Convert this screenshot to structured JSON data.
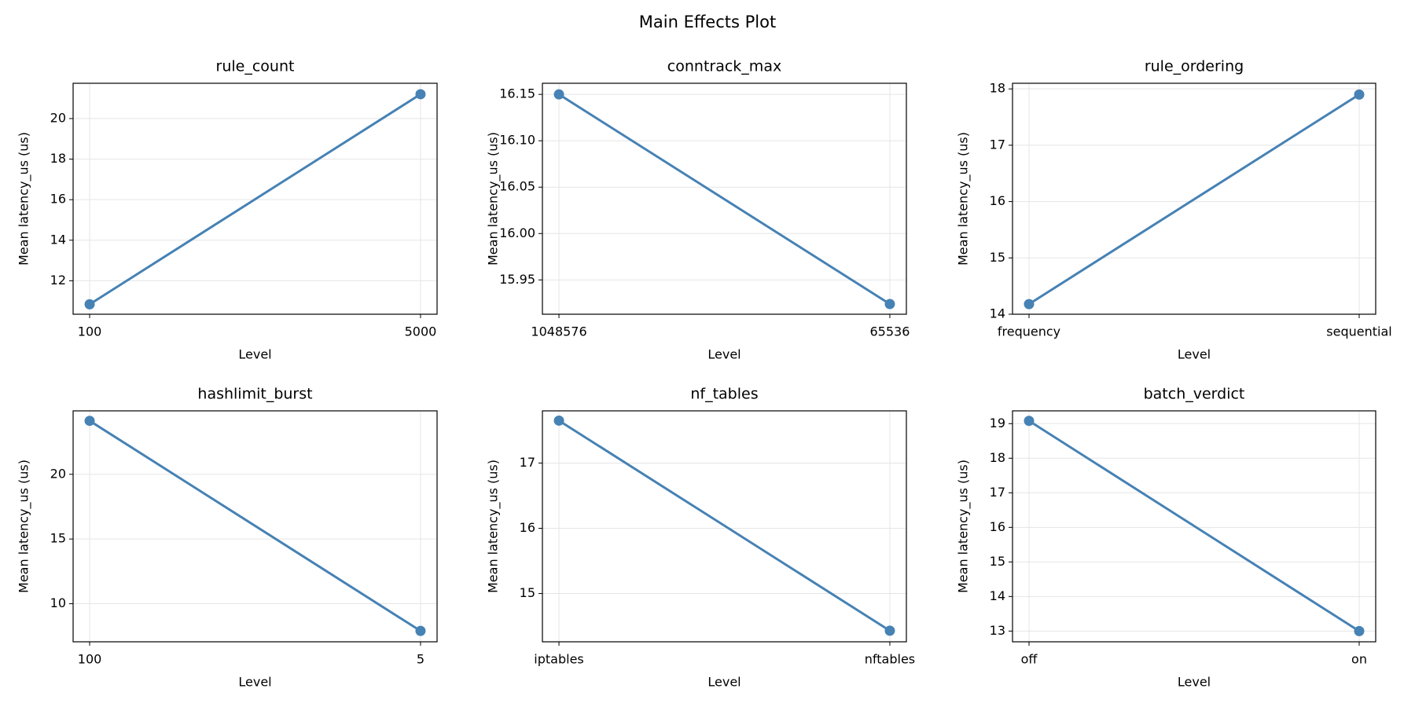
{
  "title": "Main Effects Plot",
  "chart_data": [
    {
      "type": "line",
      "title": "rule_count",
      "xlabel": "Level",
      "ylabel": "Mean latency_us (us)",
      "categories": [
        "100",
        "5000"
      ],
      "values": [
        10.84,
        21.2
      ],
      "color": "#4682b4",
      "ylim": [
        10.35,
        21.74
      ],
      "yticks": [
        12,
        14,
        16,
        18,
        20
      ],
      "grid": true
    },
    {
      "type": "line",
      "title": "conntrack_max",
      "xlabel": "Level",
      "ylabel": "Mean latency_us (us)",
      "categories": [
        "1048576",
        "65536"
      ],
      "values": [
        16.15,
        15.924
      ],
      "color": "#4682b4",
      "ylim": [
        15.913,
        16.162
      ],
      "yticks": [
        15.95,
        {
          "value": 16.0,
          "label": "16.00"
        },
        16.05,
        {
          "value": 16.1,
          "label": "16.10"
        },
        16.15
      ],
      "grid": true
    },
    {
      "type": "line",
      "title": "rule_ordering",
      "xlabel": "Level",
      "ylabel": "Mean latency_us (us)",
      "categories": [
        "frequency",
        "sequential"
      ],
      "values": [
        14.18,
        17.9
      ],
      "color": "#4682b4",
      "ylim": [
        14.0,
        18.1
      ],
      "yticks": [
        14,
        15,
        16,
        17,
        18
      ],
      "grid": true
    },
    {
      "type": "line",
      "title": "hashlimit_burst",
      "xlabel": "Level",
      "ylabel": "Mean latency_us (us)",
      "categories": [
        "100",
        "5"
      ],
      "values": [
        24.13,
        7.9
      ],
      "color": "#4682b4",
      "ylim": [
        7.06,
        24.9
      ],
      "yticks": [
        10,
        15,
        20
      ],
      "grid": true
    },
    {
      "type": "line",
      "title": "nf_tables",
      "xlabel": "Level",
      "ylabel": "Mean latency_us (us)",
      "categories": [
        "iptables",
        "nftables"
      ],
      "values": [
        17.65,
        14.43
      ],
      "color": "#4682b4",
      "ylim": [
        14.26,
        17.8
      ],
      "yticks": [
        15,
        16,
        17
      ],
      "grid": true
    },
    {
      "type": "line",
      "title": "batch_verdict",
      "xlabel": "Level",
      "ylabel": "Mean latency_us (us)",
      "categories": [
        "off",
        "on"
      ],
      "values": [
        19.08,
        13.0
      ],
      "color": "#4682b4",
      "ylim": [
        12.69,
        19.37
      ],
      "yticks": [
        13,
        14,
        15,
        16,
        17,
        18,
        19
      ],
      "grid": true
    }
  ]
}
